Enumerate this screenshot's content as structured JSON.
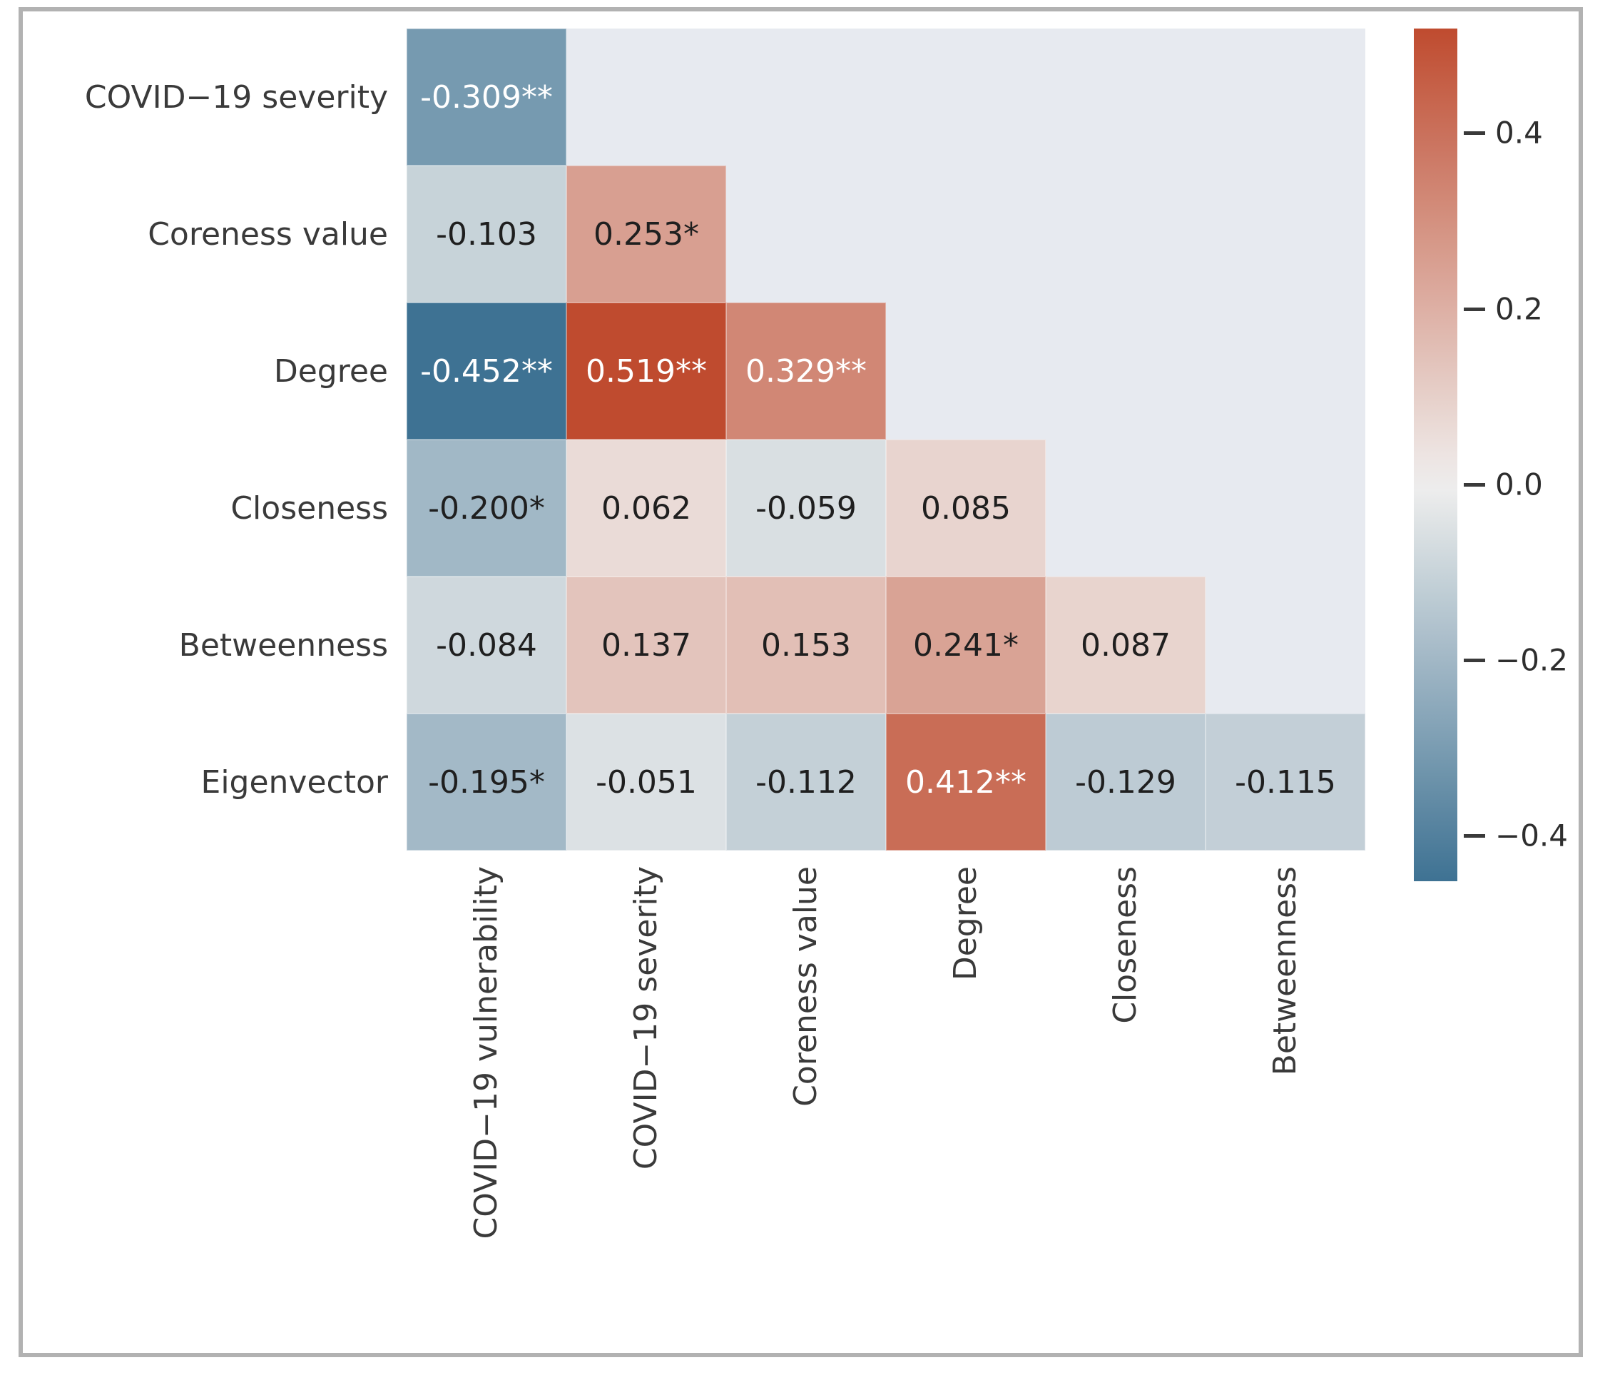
{
  "figure": {
    "background_color": "#ffffff",
    "frame_border_color": "#b2b2b2",
    "masked_area_color": "#e7eaf0",
    "label_color": "#3a3a3a",
    "annotation_dark_text_color": "#1f1f1f",
    "annotation_light_text_color": "#ffffff"
  },
  "chart_data": {
    "type": "heatmap",
    "title": "",
    "subtitle": "",
    "mask": "upper-triangle-hidden",
    "grid": "off",
    "rows": [
      "COVID−19 severity",
      "Coreness value",
      "Degree",
      "Closeness",
      "Betweenness",
      "Eigenvector"
    ],
    "columns": [
      "COVID−19 vulnerability",
      "COVID−19 severity",
      "Coreness value",
      "Degree",
      "Closeness",
      "Betweenness"
    ],
    "matrix": [
      [
        {
          "v": -0.309,
          "label": "-0.309**"
        }
      ],
      [
        {
          "v": -0.103,
          "label": "-0.103"
        },
        {
          "v": 0.253,
          "label": "0.253*"
        }
      ],
      [
        {
          "v": -0.452,
          "label": "-0.452**"
        },
        {
          "v": 0.519,
          "label": "0.519**"
        },
        {
          "v": 0.329,
          "label": "0.329**"
        }
      ],
      [
        {
          "v": -0.2,
          "label": "-0.200*"
        },
        {
          "v": 0.062,
          "label": "0.062"
        },
        {
          "v": -0.059,
          "label": "-0.059"
        },
        {
          "v": 0.085,
          "label": "0.085"
        }
      ],
      [
        {
          "v": -0.084,
          "label": "-0.084"
        },
        {
          "v": 0.137,
          "label": "0.137"
        },
        {
          "v": 0.153,
          "label": "0.153"
        },
        {
          "v": 0.241,
          "label": "0.241*"
        },
        {
          "v": 0.087,
          "label": "0.087"
        }
      ],
      [
        {
          "v": -0.195,
          "label": "-0.195*"
        },
        {
          "v": -0.051,
          "label": "-0.051"
        },
        {
          "v": -0.112,
          "label": "-0.112"
        },
        {
          "v": 0.412,
          "label": "0.412**"
        },
        {
          "v": -0.129,
          "label": "-0.129"
        },
        {
          "v": -0.115,
          "label": "-0.115"
        }
      ]
    ],
    "colorscale": {
      "vmin": -0.452,
      "vmax": 0.519,
      "negative_color": "#3e7293",
      "center_color": "#f0efee",
      "positive_color": "#bf4b2f",
      "white_text_abs_threshold": 0.3
    },
    "colorbar": {
      "position": "right",
      "tick_values": [
        0.4,
        0.2,
        0.0,
        -0.2,
        -0.4
      ],
      "tick_labels": [
        "0.4",
        "0.2",
        "0.0",
        "−0.2",
        "−0.4"
      ]
    }
  }
}
